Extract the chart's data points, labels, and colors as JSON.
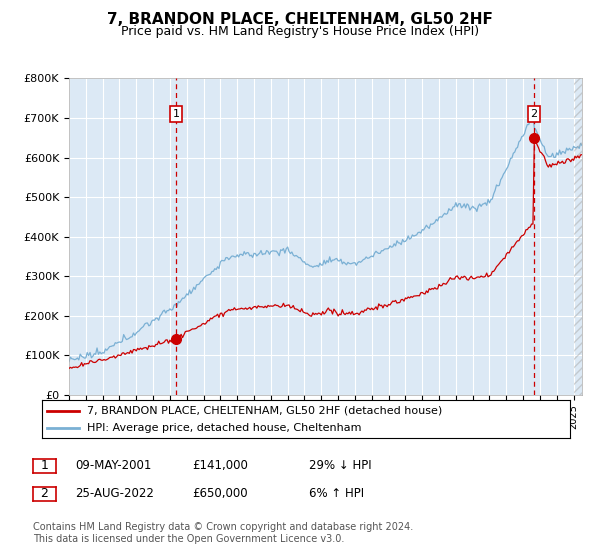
{
  "title": "7, BRANDON PLACE, CHELTENHAM, GL50 2HF",
  "subtitle": "Price paid vs. HM Land Registry's House Price Index (HPI)",
  "title_fontsize": 11,
  "subtitle_fontsize": 9,
  "background_color": "#ffffff",
  "plot_bg_color": "#dce9f5",
  "grid_color": "#ffffff",
  "hpi_color": "#7ab0d4",
  "price_color": "#cc0000",
  "marker1_x": 2001.37,
  "marker1_y": 141000,
  "marker2_x": 2022.65,
  "marker2_y": 650000,
  "ylim": [
    0,
    800000
  ],
  "xlim_start": 1995.0,
  "xlim_end": 2025.5,
  "yticks": [
    0,
    100000,
    200000,
    300000,
    400000,
    500000,
    600000,
    700000,
    800000
  ],
  "ytick_labels": [
    "£0",
    "£100K",
    "£200K",
    "£300K",
    "£400K",
    "£500K",
    "£600K",
    "£700K",
    "£800K"
  ],
  "footnote": "Contains HM Land Registry data © Crown copyright and database right 2024.\nThis data is licensed under the Open Government Licence v3.0.",
  "legend_line1": "7, BRANDON PLACE, CHELTENHAM, GL50 2HF (detached house)",
  "legend_line2": "HPI: Average price, detached house, Cheltenham",
  "table_row1_num": "1",
  "table_row1_date": "09-MAY-2001",
  "table_row1_price": "£141,000",
  "table_row1_hpi": "29% ↓ HPI",
  "table_row2_num": "2",
  "table_row2_date": "25-AUG-2022",
  "table_row2_price": "£650,000",
  "table_row2_hpi": "6% ↑ HPI"
}
